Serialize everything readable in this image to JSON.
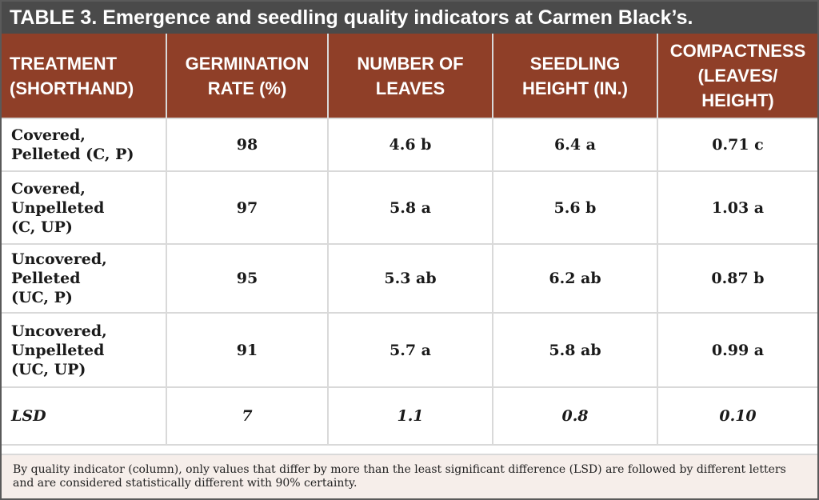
{
  "title": {
    "label": "TABLE 3.",
    "text": "Emergence and seedling quality indicators at Carmen Black’s."
  },
  "table": {
    "headers": [
      [
        "TREATMENT",
        "(SHORTHAND)"
      ],
      [
        "GERMINATION",
        "RATE (%)"
      ],
      [
        "NUMBER OF",
        "LEAVES"
      ],
      [
        "SEEDLING",
        "HEIGHT (IN.)"
      ],
      [
        "COMPACTNESS",
        "(LEAVES/",
        "HEIGHT)"
      ]
    ],
    "rows": [
      {
        "treatment": [
          "Covered,",
          "Pelleted (C, P)"
        ],
        "germination": "98",
        "leaves": "4.6 b",
        "height": "6.4 a",
        "compactness": "0.71 c"
      },
      {
        "treatment": [
          "Covered,",
          "Unpelleted",
          "(C, UP)"
        ],
        "germination": "97",
        "leaves": "5.8 a",
        "height": "5.6 b",
        "compactness": "1.03 a"
      },
      {
        "treatment": [
          "Uncovered,",
          "Pelleted",
          "(UC, P)"
        ],
        "germination": "95",
        "leaves": "5.3 ab",
        "height": "6.2 ab",
        "compactness": "0.87 b"
      },
      {
        "treatment": [
          "Uncovered,",
          "Unpelleted",
          "(UC, UP)"
        ],
        "germination": "91",
        "leaves": "5.7 a",
        "height": "5.8 ab",
        "compactness": "0.99 a"
      }
    ],
    "lsd": {
      "label": "LSD",
      "germination": "7",
      "leaves": "1.1",
      "height": "0.8",
      "compactness": "0.10"
    }
  },
  "footnote": "By quality indicator (column), only values that differ by more than the least significant difference (LSD) are followed by different letters and are considered statistically different with 90% certainty.",
  "colors": {
    "title_bar": "#4a4a4a",
    "header": "#8f3f28",
    "note_background": "#f6eeea",
    "grid": "#d9d9d9"
  }
}
